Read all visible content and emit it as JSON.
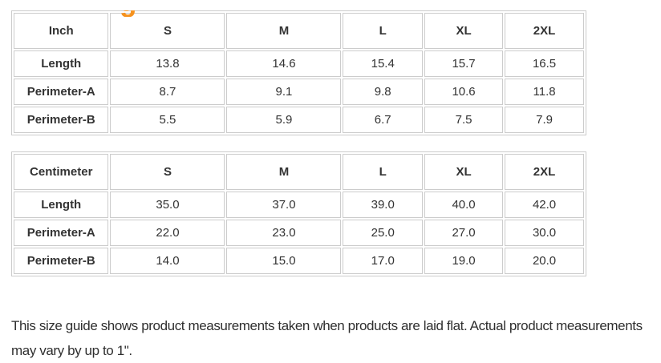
{
  "page": {
    "accent_color": "#f6921e",
    "clipped_heading_glyph": "g"
  },
  "size_guide": {
    "tables": [
      {
        "unit": "Inch",
        "sizes": [
          "S",
          "M",
          "L",
          "XL",
          "2XL"
        ],
        "rows": [
          {
            "label": "Length",
            "values": [
              "13.8",
              "14.6",
              "15.4",
              "15.7",
              "16.5"
            ]
          },
          {
            "label": "Perimeter-A",
            "values": [
              "8.7",
              "9.1",
              "9.8",
              "10.6",
              "11.8"
            ]
          },
          {
            "label": "Perimeter-B",
            "values": [
              "5.5",
              "5.9",
              "6.7",
              "7.5",
              "7.9"
            ]
          }
        ]
      },
      {
        "unit": "Centimeter",
        "sizes": [
          "S",
          "M",
          "L",
          "XL",
          "2XL"
        ],
        "rows": [
          {
            "label": "Length",
            "values": [
              "35.0",
              "37.0",
              "39.0",
              "40.0",
              "42.0"
            ]
          },
          {
            "label": "Perimeter-A",
            "values": [
              "22.0",
              "23.0",
              "25.0",
              "27.0",
              "30.0"
            ]
          },
          {
            "label": "Perimeter-B",
            "values": [
              "14.0",
              "15.0",
              "17.0",
              "19.0",
              "20.0"
            ]
          }
        ]
      }
    ],
    "note": "This size guide shows product measurements taken when products are laid flat. Actual product measurements may vary by up to 1\"."
  }
}
